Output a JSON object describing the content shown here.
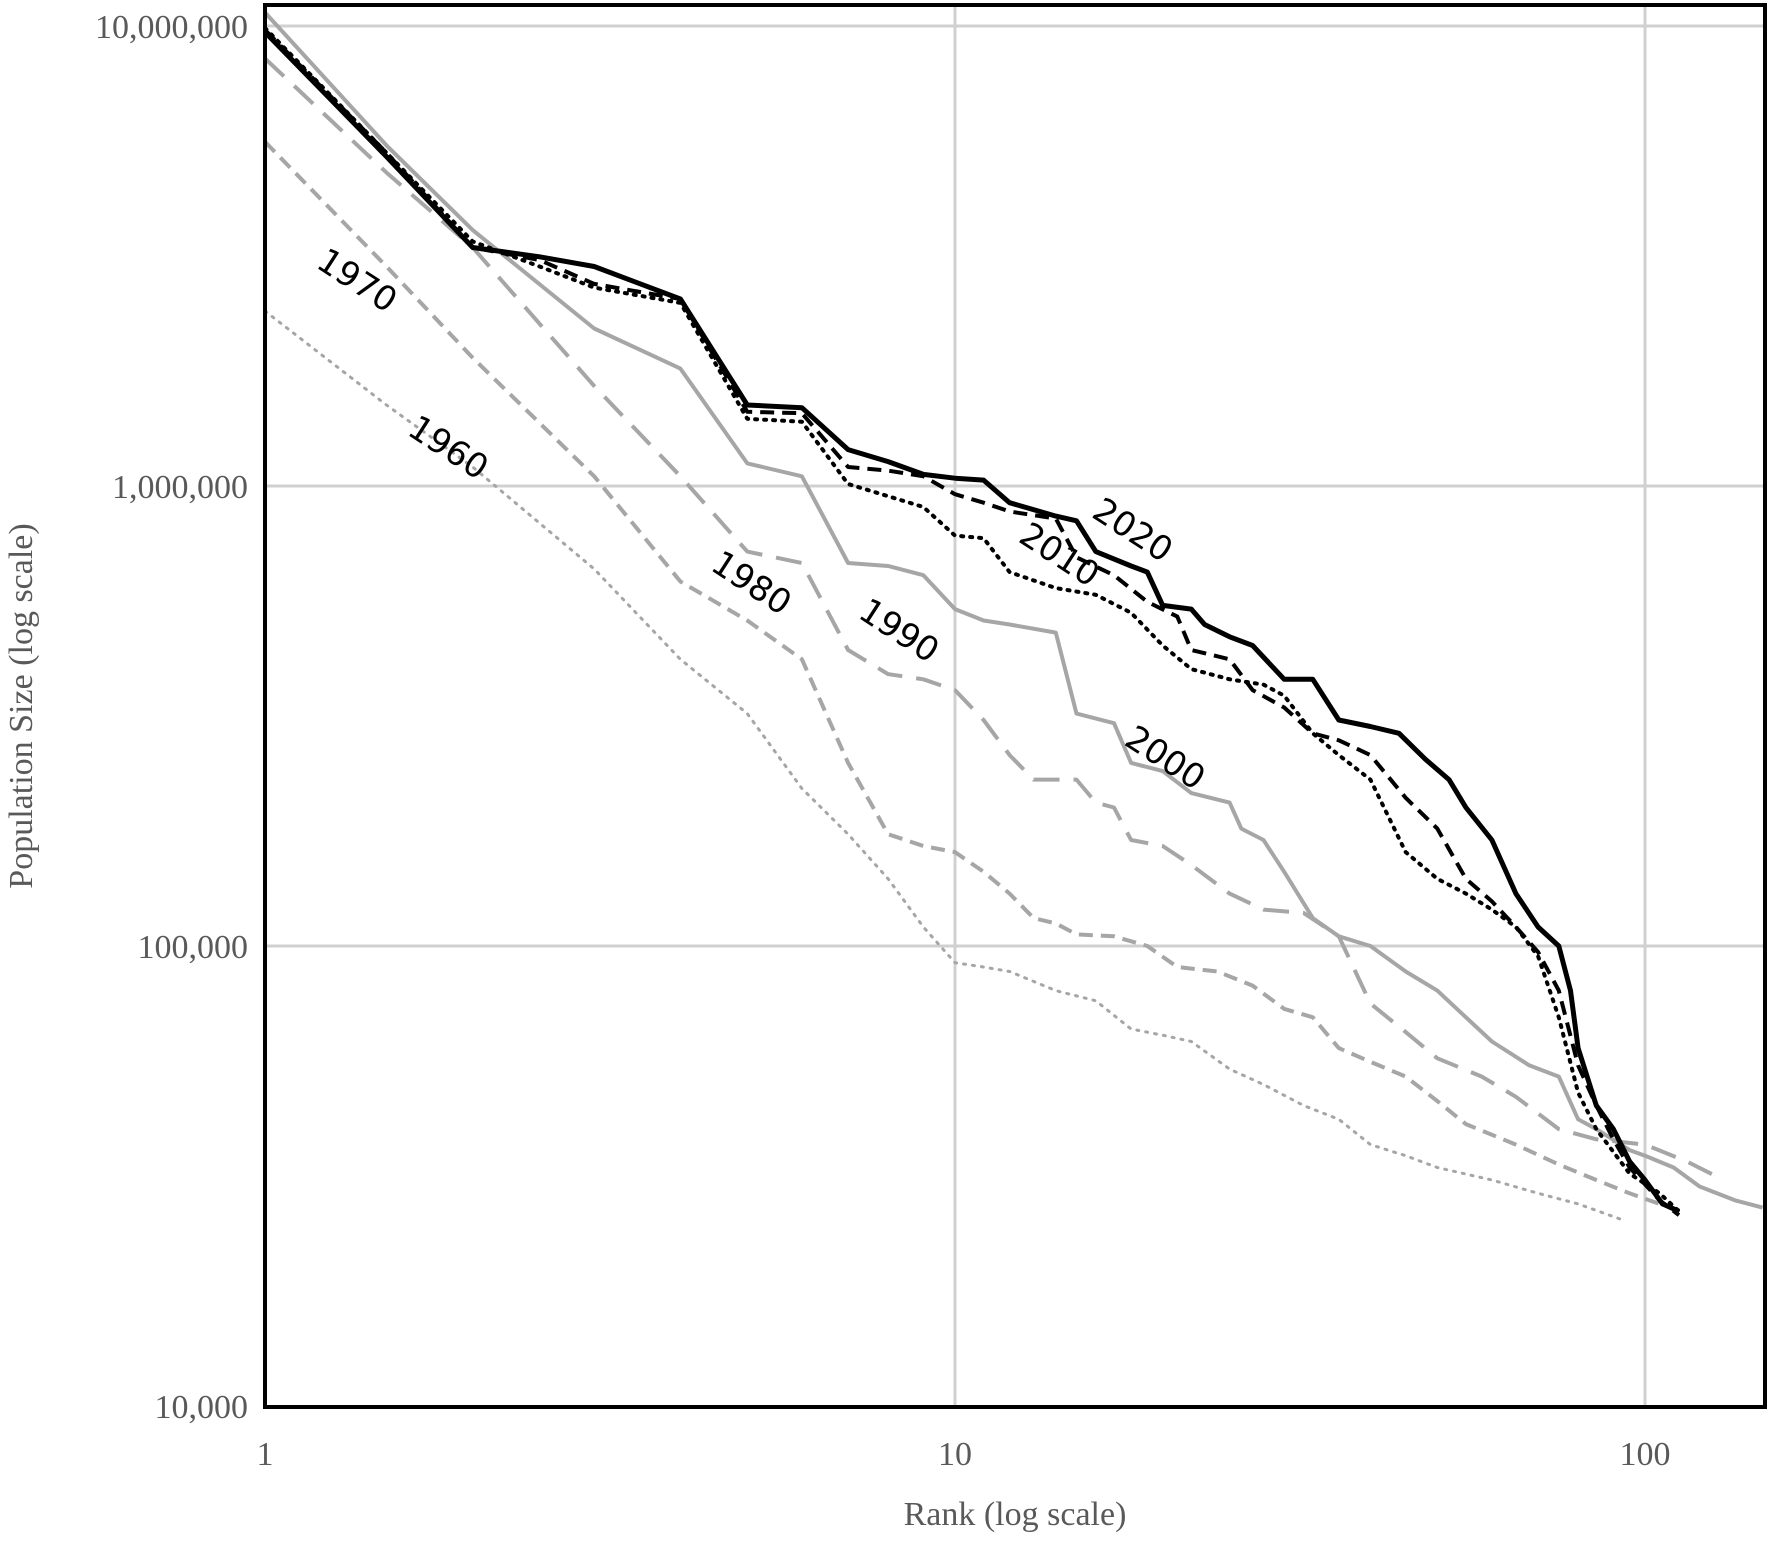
{
  "chart_data": {
    "type": "line",
    "title": "",
    "xlabel": "Rank (log scale)",
    "ylabel": "Population Size (log scale)",
    "xscale": "log",
    "yscale": "log",
    "xlim": [
      1,
      149
    ],
    "ylim": [
      10000,
      10000000
    ],
    "x_ticks": [
      1,
      10,
      100
    ],
    "x_tick_labels": [
      "1",
      "10",
      "100"
    ],
    "y_ticks": [
      10000,
      100000,
      1000000,
      10000000
    ],
    "y_tick_labels": [
      "10,000",
      "100,000",
      "1,000,000",
      "10,000,000"
    ],
    "grid": true,
    "legend": "none (inline labels)",
    "series": [
      {
        "name": "1960",
        "color": "#a6a6a6",
        "style": "dotted",
        "width": 3,
        "label": {
          "text": "1960",
          "x": 1.6,
          "y": 1300000,
          "rotate": 33
        },
        "points": [
          [
            1,
            2400000
          ],
          [
            1.5,
            1500000
          ],
          [
            2,
            1100000
          ],
          [
            3,
            660000
          ],
          [
            4,
            420000
          ],
          [
            5,
            320000
          ],
          [
            6,
            220000
          ],
          [
            7,
            175000
          ],
          [
            8,
            140000
          ],
          [
            9,
            110000
          ],
          [
            10,
            92000
          ],
          [
            11,
            90000
          ],
          [
            12,
            88000
          ],
          [
            14,
            80000
          ],
          [
            16,
            76000
          ],
          [
            18,
            66000
          ],
          [
            20,
            64000
          ],
          [
            22,
            62000
          ],
          [
            25,
            54000
          ],
          [
            28,
            50000
          ],
          [
            32,
            45000
          ],
          [
            36,
            42000
          ],
          [
            40,
            37000
          ],
          [
            45,
            35000
          ],
          [
            50,
            33000
          ],
          [
            60,
            31000
          ],
          [
            70,
            29000
          ],
          [
            80,
            27500
          ],
          [
            92,
            25500
          ]
        ]
      },
      {
        "name": "1970",
        "color": "#a6a6a6",
        "style": "dashed",
        "width": 4,
        "label": {
          "text": "1970",
          "x": 1.18,
          "y": 3000000,
          "rotate": 33
        },
        "points": [
          [
            1,
            5600000
          ],
          [
            1.5,
            3000000
          ],
          [
            2,
            1900000
          ],
          [
            3,
            1050000
          ],
          [
            4,
            620000
          ],
          [
            5,
            510000
          ],
          [
            6,
            420000
          ],
          [
            7,
            250000
          ],
          [
            8,
            175000
          ],
          [
            9,
            165000
          ],
          [
            10,
            160000
          ],
          [
            11,
            145000
          ],
          [
            12,
            130000
          ],
          [
            13,
            115000
          ],
          [
            14,
            112000
          ],
          [
            15,
            106000
          ],
          [
            17,
            105000
          ],
          [
            19,
            100000
          ],
          [
            21,
            90000
          ],
          [
            24,
            88000
          ],
          [
            27,
            82000
          ],
          [
            30,
            73000
          ],
          [
            33,
            70000
          ],
          [
            36,
            60000
          ],
          [
            40,
            56000
          ],
          [
            45,
            52000
          ],
          [
            50,
            46000
          ],
          [
            55,
            41000
          ],
          [
            65,
            37000
          ],
          [
            75,
            33500
          ],
          [
            85,
            31000
          ],
          [
            95,
            29000
          ],
          [
            105,
            27500
          ]
        ]
      },
      {
        "name": "1980",
        "color": "#a6a6a6",
        "style": "longdash",
        "width": 4,
        "label": {
          "text": "1980",
          "x": 4.4,
          "y": 660000,
          "rotate": 33
        },
        "points": [
          [
            1,
            8500000
          ],
          [
            1.5,
            4800000
          ],
          [
            2,
            3300000
          ],
          [
            3,
            1650000
          ],
          [
            4,
            1050000
          ],
          [
            5,
            720000
          ],
          [
            6,
            680000
          ],
          [
            7,
            440000
          ],
          [
            8,
            390000
          ],
          [
            9,
            380000
          ],
          [
            10,
            360000
          ],
          [
            11,
            310000
          ],
          [
            12,
            260000
          ],
          [
            13,
            230000
          ],
          [
            15,
            230000
          ],
          [
            16,
            205000
          ],
          [
            17,
            200000
          ],
          [
            18,
            170000
          ],
          [
            20,
            165000
          ],
          [
            22,
            150000
          ],
          [
            25,
            130000
          ],
          [
            28,
            120000
          ],
          [
            32,
            118000
          ],
          [
            36,
            105000
          ],
          [
            40,
            75000
          ],
          [
            45,
            65000
          ],
          [
            50,
            57000
          ],
          [
            58,
            52000
          ],
          [
            65,
            47000
          ],
          [
            75,
            40000
          ],
          [
            85,
            38000
          ],
          [
            100,
            37000
          ],
          [
            115,
            34000
          ],
          [
            130,
            31000
          ]
        ]
      },
      {
        "name": "1990",
        "color": "#a6a6a6",
        "style": "solid",
        "width": 4,
        "label": {
          "text": "1990",
          "x": 7.2,
          "y": 520000,
          "rotate": 33
        },
        "points": [
          [
            1,
            10700000
          ],
          [
            1.5,
            5500000
          ],
          [
            2,
            3600000
          ],
          [
            3,
            2200000
          ],
          [
            4,
            1800000
          ],
          [
            5,
            1120000
          ],
          [
            6,
            1050000
          ],
          [
            7,
            680000
          ],
          [
            8,
            670000
          ],
          [
            9,
            640000
          ],
          [
            10,
            540000
          ],
          [
            11,
            510000
          ],
          [
            12,
            500000
          ],
          [
            14,
            480000
          ],
          [
            15,
            320000
          ],
          [
            17,
            305000
          ],
          [
            18,
            250000
          ],
          [
            20,
            240000
          ],
          [
            22,
            215000
          ],
          [
            25,
            205000
          ],
          [
            26,
            180000
          ],
          [
            28,
            170000
          ],
          [
            30,
            145000
          ],
          [
            33,
            115000
          ],
          [
            36,
            105000
          ],
          [
            40,
            100000
          ],
          [
            45,
            88000
          ],
          [
            50,
            80000
          ],
          [
            55,
            70000
          ],
          [
            60,
            62000
          ],
          [
            68,
            55000
          ],
          [
            75,
            52000
          ],
          [
            80,
            42000
          ],
          [
            85,
            40000
          ],
          [
            95,
            36000
          ],
          [
            100,
            35000
          ],
          [
            110,
            33000
          ],
          [
            120,
            30000
          ],
          [
            135,
            28000
          ],
          [
            148,
            27000
          ]
        ]
      },
      {
        "name": "2000",
        "color": "#000000",
        "style": "dotted",
        "width": 4,
        "label": {
          "text": "2000",
          "x": 17.5,
          "y": 275000,
          "rotate": 33
        },
        "points": [
          [
            1,
            9900000
          ],
          [
            1.5,
            5300000
          ],
          [
            2,
            3400000
          ],
          [
            2.5,
            3000000
          ],
          [
            3,
            2700000
          ],
          [
            4,
            2500000
          ],
          [
            5,
            1400000
          ],
          [
            6,
            1380000
          ],
          [
            7,
            1010000
          ],
          [
            8,
            950000
          ],
          [
            9,
            900000
          ],
          [
            10,
            780000
          ],
          [
            11,
            770000
          ],
          [
            12,
            650000
          ],
          [
            14,
            600000
          ],
          [
            16,
            580000
          ],
          [
            18,
            530000
          ],
          [
            20,
            450000
          ],
          [
            22,
            400000
          ],
          [
            25,
            380000
          ],
          [
            28,
            370000
          ],
          [
            30,
            350000
          ],
          [
            33,
            290000
          ],
          [
            36,
            260000
          ],
          [
            40,
            230000
          ],
          [
            45,
            160000
          ],
          [
            50,
            140000
          ],
          [
            55,
            130000
          ],
          [
            60,
            120000
          ],
          [
            65,
            110000
          ],
          [
            70,
            95000
          ],
          [
            75,
            70000
          ],
          [
            80,
            48000
          ],
          [
            85,
            40000
          ],
          [
            95,
            32000
          ],
          [
            105,
            29000
          ],
          [
            112,
            26500
          ]
        ]
      },
      {
        "name": "2010",
        "color": "#000000",
        "style": "dashed",
        "width": 4,
        "label": {
          "text": "2010",
          "x": 12.3,
          "y": 760000,
          "rotate": 33
        },
        "points": [
          [
            1,
            9800000
          ],
          [
            1.5,
            5300000
          ],
          [
            2,
            3300000
          ],
          [
            2.5,
            3100000
          ],
          [
            3,
            2750000
          ],
          [
            4,
            2550000
          ],
          [
            5,
            1450000
          ],
          [
            6,
            1440000
          ],
          [
            7,
            1100000
          ],
          [
            8,
            1080000
          ],
          [
            9,
            1050000
          ],
          [
            10,
            960000
          ],
          [
            11,
            920000
          ],
          [
            12,
            880000
          ],
          [
            14,
            850000
          ],
          [
            15,
            700000
          ],
          [
            17,
            640000
          ],
          [
            19,
            560000
          ],
          [
            21,
            520000
          ],
          [
            22,
            440000
          ],
          [
            25,
            420000
          ],
          [
            27,
            360000
          ],
          [
            30,
            330000
          ],
          [
            33,
            290000
          ],
          [
            36,
            280000
          ],
          [
            40,
            260000
          ],
          [
            45,
            210000
          ],
          [
            50,
            180000
          ],
          [
            55,
            140000
          ],
          [
            60,
            125000
          ],
          [
            65,
            110000
          ],
          [
            70,
            97000
          ],
          [
            75,
            80000
          ],
          [
            80,
            55000
          ],
          [
            85,
            45000
          ],
          [
            90,
            38000
          ],
          [
            95,
            33000
          ],
          [
            105,
            28000
          ],
          [
            112,
            26000
          ]
        ]
      },
      {
        "name": "2020",
        "color": "#000000",
        "style": "solid",
        "width": 5,
        "label": {
          "text": "2020",
          "x": 15.7,
          "y": 860000,
          "rotate": 33
        },
        "points": [
          [
            1,
            9700000
          ],
          [
            1.5,
            5200000
          ],
          [
            2,
            3300000
          ],
          [
            2.5,
            3150000
          ],
          [
            3,
            3000000
          ],
          [
            4,
            2550000
          ],
          [
            5,
            1500000
          ],
          [
            6,
            1480000
          ],
          [
            7,
            1200000
          ],
          [
            8,
            1130000
          ],
          [
            9,
            1060000
          ],
          [
            10,
            1040000
          ],
          [
            11,
            1030000
          ],
          [
            12,
            920000
          ],
          [
            14,
            860000
          ],
          [
            15,
            840000
          ],
          [
            16,
            720000
          ],
          [
            18,
            670000
          ],
          [
            19,
            650000
          ],
          [
            20,
            550000
          ],
          [
            22,
            540000
          ],
          [
            23,
            500000
          ],
          [
            25,
            470000
          ],
          [
            27,
            450000
          ],
          [
            30,
            380000
          ],
          [
            33,
            380000
          ],
          [
            36,
            310000
          ],
          [
            40,
            300000
          ],
          [
            44,
            290000
          ],
          [
            48,
            255000
          ],
          [
            52,
            230000
          ],
          [
            55,
            200000
          ],
          [
            60,
            170000
          ],
          [
            65,
            130000
          ],
          [
            70,
            110000
          ],
          [
            75,
            100000
          ],
          [
            78,
            80000
          ],
          [
            80,
            60000
          ],
          [
            85,
            45000
          ],
          [
            90,
            40000
          ],
          [
            95,
            34000
          ],
          [
            100,
            31000
          ],
          [
            106,
            27500
          ],
          [
            112,
            26500
          ]
        ]
      }
    ]
  },
  "axes": {
    "x_title": "Rank (log scale)",
    "y_title": "Population Size (log scale)"
  },
  "colors": {
    "grid": "#d0d0d0",
    "frame": "#000000",
    "tick_text": "#595959"
  }
}
